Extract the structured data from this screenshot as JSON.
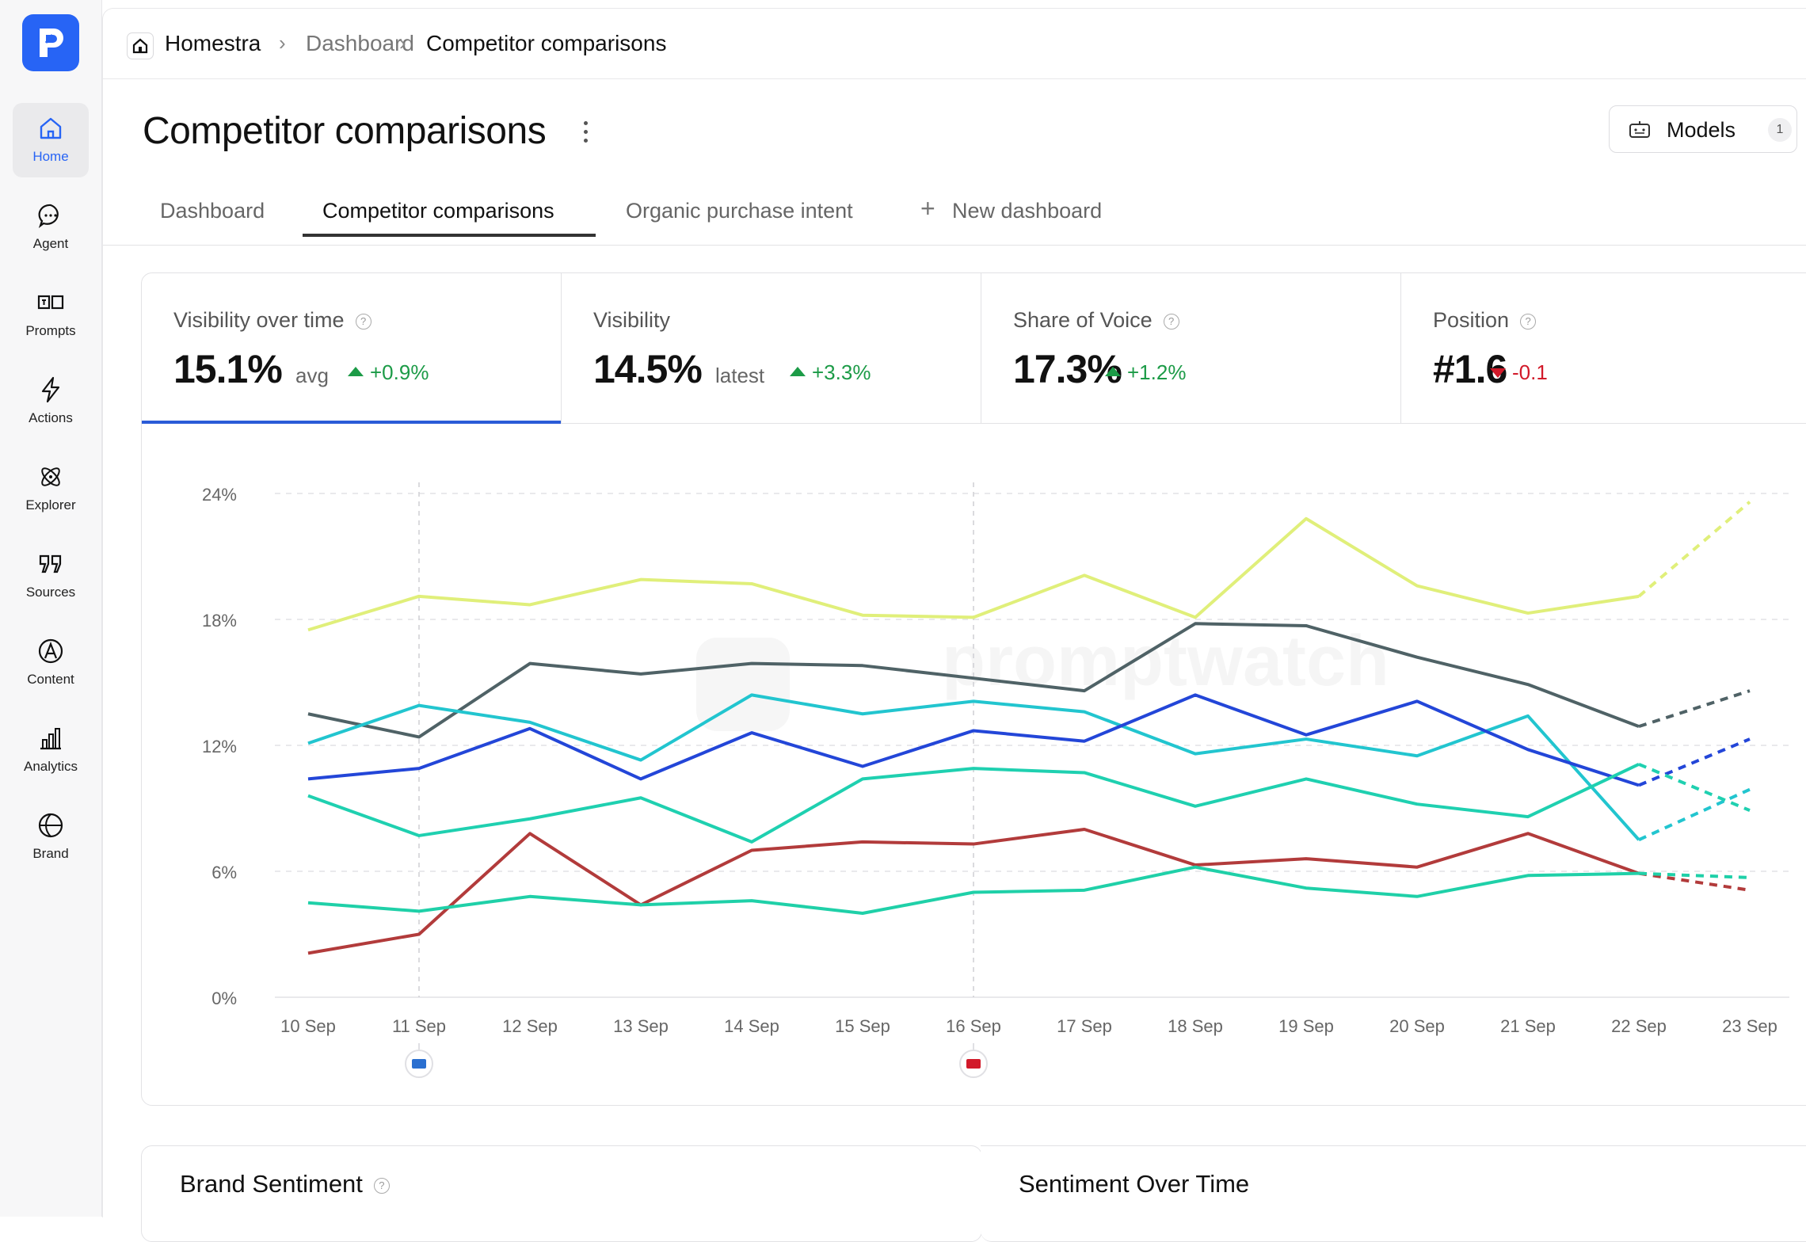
{
  "sidebar": {
    "items": [
      {
        "label": "Home",
        "icon": "home-icon"
      },
      {
        "label": "Agent",
        "icon": "chat-bubble-icon"
      },
      {
        "label": "Prompts",
        "icon": "prompts-icon"
      },
      {
        "label": "Actions",
        "icon": "lightning-icon"
      },
      {
        "label": "Explorer",
        "icon": "atom-icon"
      },
      {
        "label": "Sources",
        "icon": "quote-icon"
      },
      {
        "label": "Content",
        "icon": "content-icon"
      },
      {
        "label": "Analytics",
        "icon": "bar-chart-icon"
      },
      {
        "label": "Brand",
        "icon": "globe-icon"
      }
    ]
  },
  "breadcrumb": {
    "workspace": "Homestra",
    "section": "Dashboard",
    "current": "Competitor comparisons"
  },
  "page": {
    "title": "Competitor comparisons",
    "models_label": "Models",
    "models_count": "1"
  },
  "tabs": [
    {
      "label": "Dashboard"
    },
    {
      "label": "Competitor comparisons"
    },
    {
      "label": "Organic purchase intent"
    },
    {
      "label": "New dashboard"
    }
  ],
  "metrics": [
    {
      "label": "Visibility over time",
      "value": "15.1%",
      "sub": "avg",
      "delta": "+0.9%",
      "trend": "up"
    },
    {
      "label": "Visibility",
      "value": "14.5%",
      "sub": "latest",
      "delta": "+3.3%",
      "trend": "up"
    },
    {
      "label": "Share of Voice",
      "value": "17.3%",
      "sub": "",
      "delta": "+1.2%",
      "trend": "up"
    },
    {
      "label": "Position",
      "value": "#1.6",
      "sub": "",
      "delta": "-0.1",
      "trend": "down"
    }
  ],
  "watermark": "promptwatch",
  "colors": {
    "accent": "#2764f5",
    "up": "#1c9b47",
    "down": "#d21a2a"
  },
  "chart_data": {
    "type": "line",
    "categories": [
      "10 Sep",
      "11 Sep",
      "12 Sep",
      "13 Sep",
      "14 Sep",
      "15 Sep",
      "16 Sep",
      "17 Sep",
      "18 Sep",
      "19 Sep",
      "20 Sep",
      "21 Sep",
      "22 Sep",
      "23 Sep"
    ],
    "y_ticks": [
      "0%",
      "6%",
      "12%",
      "18%",
      "24%"
    ],
    "ylim": [
      0,
      24
    ],
    "grid": true,
    "projected_from_index": 12,
    "series": [
      {
        "color": "#e0ef7a",
        "values": [
          17.5,
          19.1,
          18.7,
          19.9,
          19.7,
          18.2,
          18.1,
          20.1,
          18.1,
          22.8,
          19.6,
          18.3,
          19.1,
          23.6
        ]
      },
      {
        "color": "#4f6266",
        "values": [
          13.5,
          12.4,
          15.9,
          15.4,
          15.9,
          15.8,
          15.2,
          14.6,
          17.8,
          17.7,
          16.2,
          14.9,
          12.9,
          14.6
        ]
      },
      {
        "color": "#22c5cf",
        "values": [
          12.1,
          13.9,
          13.1,
          11.3,
          14.4,
          13.5,
          14.1,
          13.6,
          11.6,
          12.3,
          11.5,
          13.4,
          7.5,
          9.9
        ]
      },
      {
        "color": "#2346d8",
        "values": [
          10.4,
          10.9,
          12.8,
          10.4,
          12.6,
          11.0,
          12.7,
          12.2,
          14.4,
          12.5,
          14.1,
          11.8,
          10.1,
          12.3
        ]
      },
      {
        "color": "#1fd0b0",
        "values": [
          9.6,
          7.7,
          8.5,
          9.5,
          7.4,
          10.4,
          10.9,
          10.7,
          9.1,
          10.4,
          9.2,
          8.6,
          11.1,
          8.9
        ]
      },
      {
        "color": "#b23b3b",
        "values": [
          2.1,
          3.0,
          7.8,
          4.4,
          7.0,
          7.4,
          7.3,
          8.0,
          6.3,
          6.6,
          6.2,
          7.8,
          5.9,
          5.1
        ]
      },
      {
        "color": "#1fd0a8",
        "values": [
          4.5,
          4.1,
          4.8,
          4.4,
          4.6,
          4.0,
          5.0,
          5.1,
          6.2,
          5.2,
          4.8,
          5.8,
          5.9,
          5.7
        ]
      }
    ],
    "markers": [
      {
        "index": 1,
        "color": "#2a6fd0"
      },
      {
        "index": 6,
        "color": "#d21a2a"
      }
    ]
  },
  "bottom_cards": {
    "left_title": "Brand Sentiment",
    "right_title": "Sentiment Over Time"
  }
}
